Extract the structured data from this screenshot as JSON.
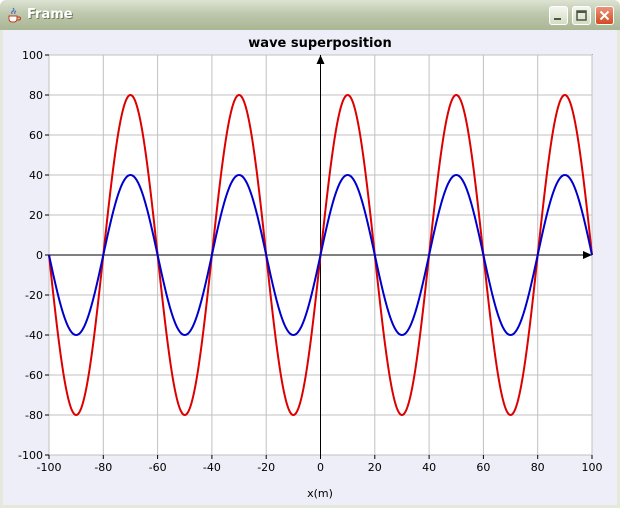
{
  "window": {
    "title": "Frame",
    "app_icon": "java-cup-icon",
    "controls": [
      "minimize-icon",
      "maximize-icon",
      "close-icon"
    ]
  },
  "chart_data": {
    "type": "line",
    "title": "wave superposition",
    "xlabel": "x(m)",
    "ylabel": "",
    "xlim": [
      -100,
      100
    ],
    "ylim": [
      -100,
      100
    ],
    "x_ticks": [
      -100,
      -80,
      -60,
      -40,
      -20,
      0,
      20,
      40,
      60,
      80,
      100
    ],
    "y_ticks": [
      -100,
      -80,
      -60,
      -40,
      -20,
      0,
      20,
      40,
      60,
      80,
      100
    ],
    "grid": true,
    "legend": "none",
    "series": [
      {
        "color": "#dd0000",
        "function": "80*sin(2*pi*x/40)",
        "amplitude": 80,
        "wavelength": 40
      },
      {
        "color": "#0000cc",
        "function": "40*sin(2*pi*x/40)",
        "amplitude": 40,
        "wavelength": 40
      }
    ]
  }
}
